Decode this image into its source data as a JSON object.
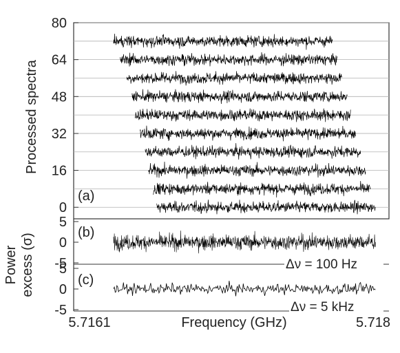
{
  "chart_data": [
    {
      "panel": "(a)",
      "type": "line",
      "ylabel": "Processed spectra",
      "ylim": [
        -5,
        80
      ],
      "yticks": [
        "0",
        "16",
        "32",
        "48",
        "64",
        "80"
      ],
      "ytick_values": [
        0,
        16,
        32,
        48,
        64,
        80
      ],
      "grid": true,
      "series_offsets": [
        0,
        8,
        16,
        24,
        32,
        40,
        48,
        56,
        64,
        72
      ],
      "series_ranges_ghz": [
        [
          5.7166,
          5.71792
        ],
        [
          5.71658,
          5.71789
        ],
        [
          5.71655,
          5.71786
        ],
        [
          5.71653,
          5.71783
        ],
        [
          5.7165,
          5.7178
        ],
        [
          5.71647,
          5.71777
        ],
        [
          5.71645,
          5.71775
        ],
        [
          5.71642,
          5.71772
        ],
        [
          5.71638,
          5.71769
        ],
        [
          5.71634,
          5.71766
        ]
      ],
      "noise_half_width": 2.4
    },
    {
      "panel": "(b)",
      "type": "line",
      "ylim": [
        -5,
        5
      ],
      "yticks": [
        "5",
        "0",
        "-5"
      ],
      "ytick_values": [
        5,
        0,
        -5
      ],
      "resolution_label": "Δν = 100 Hz",
      "x_range_ghz": [
        5.71634,
        5.71792
      ],
      "noise_sigma": 1.1
    },
    {
      "panel": "(c)",
      "type": "line",
      "ylim": [
        -5,
        5
      ],
      "yticks": [
        "5",
        "0",
        "-5"
      ],
      "ytick_values": [
        5,
        0,
        -5
      ],
      "resolution_label": "Δν = 5 kHz",
      "x_range_ghz": [
        5.71634,
        5.71792
      ],
      "noise_sigma": 0.55
    }
  ],
  "shared": {
    "xlabel": "Frequency (GHz)",
    "xlim": [
      5.7161,
      5.718
    ],
    "xtick_left": "5.7161",
    "xtick_right": "5.718",
    "power_label_line1": "Power",
    "power_label_line2": "excess (σ)",
    "colors": {
      "trace": "#000000",
      "grid": "#b0b0b0",
      "axis": "#333333",
      "text": "#222222"
    }
  }
}
